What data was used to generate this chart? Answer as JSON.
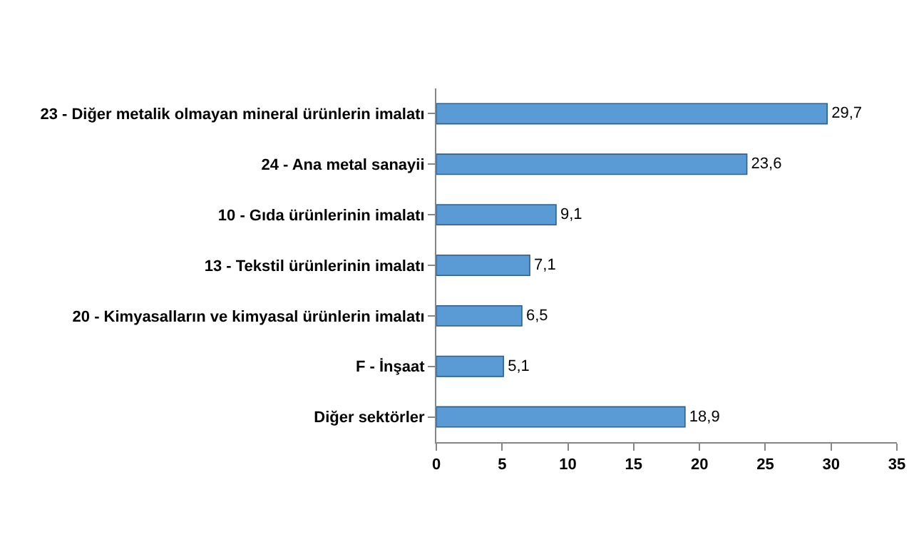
{
  "chart_data": {
    "type": "bar",
    "orientation": "horizontal",
    "categories": [
      "23 - Diğer metalik olmayan mineral ürünlerin imalatı",
      "24 - Ana metal sanayii",
      "10 - Gıda ürünlerinin imalatı",
      "13 - Tekstil ürünlerinin imalatı",
      "20 - Kimyasalların ve kimyasal ürünlerin imalatı",
      "F - İnşaat",
      "Diğer sektörler"
    ],
    "values": [
      29.7,
      23.6,
      9.1,
      7.1,
      6.5,
      5.1,
      18.9
    ],
    "value_labels": [
      "29,7",
      "23,6",
      "9,1",
      "7,1",
      "6,5",
      "5,1",
      "18,9"
    ],
    "color": "#5b9bd5",
    "xlim": [
      0,
      35
    ],
    "xticks": [
      0,
      5,
      10,
      15,
      20,
      25,
      30,
      35
    ],
    "grid": false,
    "legend": false
  }
}
